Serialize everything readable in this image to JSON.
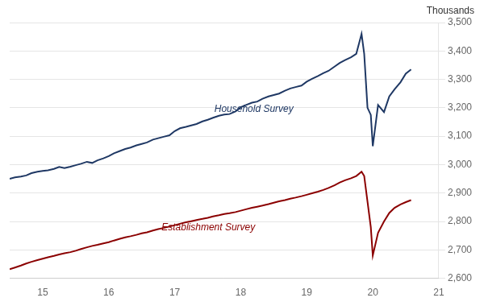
{
  "chart_data": {
    "type": "line",
    "ylabel": "Thousands",
    "x": [
      14.5,
      14.58,
      14.67,
      14.75,
      14.83,
      14.92,
      15.0,
      15.08,
      15.17,
      15.25,
      15.33,
      15.42,
      15.5,
      15.58,
      15.67,
      15.75,
      15.83,
      15.92,
      16.0,
      16.08,
      16.17,
      16.25,
      16.33,
      16.42,
      16.5,
      16.58,
      16.67,
      16.75,
      16.83,
      16.92,
      17.0,
      17.08,
      17.17,
      17.25,
      17.33,
      17.42,
      17.5,
      17.58,
      17.67,
      17.75,
      17.83,
      17.92,
      18.0,
      18.08,
      18.17,
      18.25,
      18.33,
      18.42,
      18.5,
      18.58,
      18.67,
      18.75,
      18.83,
      18.92,
      19.0,
      19.08,
      19.17,
      19.25,
      19.33,
      19.42,
      19.5,
      19.58,
      19.67,
      19.75,
      19.83,
      19.87,
      19.92,
      19.97,
      20.0,
      20.08,
      20.17,
      20.25,
      20.33,
      20.42,
      20.5,
      20.58
    ],
    "series": [
      {
        "name": "Household Survey",
        "color": "#1F3864",
        "values": [
          2950,
          2955,
          2958,
          2962,
          2970,
          2975,
          2978,
          2980,
          2985,
          2992,
          2988,
          2993,
          2998,
          3003,
          3010,
          3006,
          3015,
          3022,
          3030,
          3040,
          3048,
          3055,
          3060,
          3068,
          3073,
          3078,
          3088,
          3093,
          3098,
          3103,
          3118,
          3128,
          3133,
          3138,
          3143,
          3152,
          3158,
          3165,
          3172,
          3176,
          3178,
          3187,
          3202,
          3210,
          3218,
          3222,
          3232,
          3240,
          3245,
          3250,
          3260,
          3268,
          3273,
          3278,
          3292,
          3302,
          3312,
          3322,
          3330,
          3345,
          3358,
          3368,
          3378,
          3390,
          3460,
          3390,
          3200,
          3175,
          3065,
          3210,
          3185,
          3240,
          3265,
          3290,
          3320,
          3335
        ]
      },
      {
        "name": "Establishment Survey",
        "color": "#8B0000",
        "values": [
          2632,
          2638,
          2645,
          2652,
          2658,
          2664,
          2669,
          2674,
          2679,
          2684,
          2688,
          2692,
          2697,
          2703,
          2709,
          2714,
          2718,
          2723,
          2727,
          2733,
          2739,
          2744,
          2748,
          2753,
          2758,
          2762,
          2768,
          2773,
          2777,
          2782,
          2787,
          2792,
          2797,
          2801,
          2805,
          2809,
          2813,
          2818,
          2822,
          2826,
          2829,
          2833,
          2838,
          2843,
          2848,
          2852,
          2856,
          2861,
          2866,
          2871,
          2875,
          2880,
          2884,
          2889,
          2894,
          2899,
          2905,
          2911,
          2918,
          2927,
          2937,
          2945,
          2952,
          2960,
          2975,
          2960,
          2870,
          2780,
          2680,
          2760,
          2800,
          2830,
          2848,
          2860,
          2868,
          2875
        ]
      }
    ],
    "annotations": [
      {
        "text": "Household Survey",
        "x": 17.6,
        "y": 3185,
        "color": "#1F3864"
      },
      {
        "text": "Establishment Survey",
        "x": 16.8,
        "y": 2768,
        "color": "#8B0000"
      }
    ],
    "xlim": [
      14.5,
      21.0
    ],
    "xticks": [
      15,
      16,
      17,
      18,
      19,
      20,
      21
    ],
    "ylim": [
      2600,
      3500
    ],
    "yticks": [
      {
        "value": 2600,
        "label": "2,600"
      },
      {
        "value": 2700,
        "label": "2,700"
      },
      {
        "value": 2800,
        "label": "2,800"
      },
      {
        "value": 2900,
        "label": "2,900"
      },
      {
        "value": 3000,
        "label": "3,000"
      },
      {
        "value": 3100,
        "label": "3,100"
      },
      {
        "value": 3200,
        "label": "3,200"
      },
      {
        "value": 3300,
        "label": "3,300"
      },
      {
        "value": 3400,
        "label": "3,400"
      },
      {
        "value": 3500,
        "label": "3,500"
      }
    ],
    "grid": "y"
  }
}
